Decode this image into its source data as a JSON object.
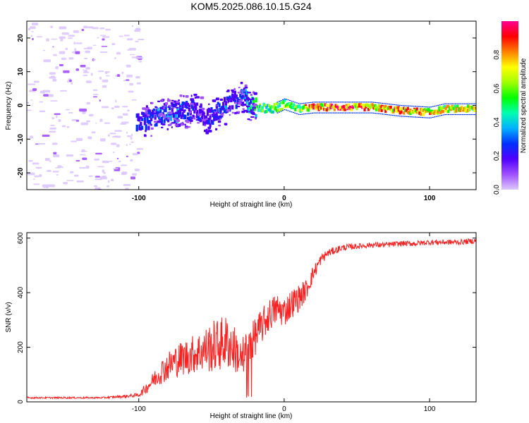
{
  "figure": {
    "title": "KOM5.2025.086.10.15.G24"
  },
  "chart_data": [
    {
      "type": "heatmap",
      "title": "KOM5.2025.086.10.15.G24",
      "xlabel": "Height of straight line (km)",
      "ylabel": "Frequency (Hz)",
      "xlim": [
        -177,
        132
      ],
      "ylim": [
        -25,
        25
      ],
      "xticks": [
        -100,
        0,
        100
      ],
      "yticks": [
        -20,
        -10,
        0,
        10,
        20
      ],
      "colorbar": {
        "label": "Normalized spectral amplitude",
        "range": [
          0,
          1
        ],
        "ticks": [
          "0.0",
          "0.2",
          "0.4",
          "0.6",
          "0.8"
        ],
        "colors": [
          "#dcc8ff",
          "#a050ff",
          "#5000ff",
          "#0030ff",
          "#00b0ff",
          "#00ffb0",
          "#00ff00",
          "#a0ff00",
          "#ffff00",
          "#ff8000",
          "#ff0000",
          "#ff0090"
        ]
      },
      "frequency_track": {
        "x": [
          -100,
          -90,
          -80,
          -70,
          -60,
          -55,
          -50,
          -45,
          -40,
          -35,
          -30,
          -28,
          -25,
          -20,
          -15,
          -10,
          -5,
          0,
          10,
          20,
          40,
          60,
          80,
          100,
          110,
          132
        ],
        "y": [
          -5,
          -3.5,
          -2,
          -1.5,
          -1,
          -4,
          -3,
          -1,
          0,
          2,
          3,
          2.5,
          0.5,
          -0.5,
          -0.5,
          -1,
          -0.5,
          0.5,
          -1,
          -0.5,
          -0.5,
          -0.5,
          -1.5,
          -2,
          -1,
          -1
        ],
        "amplitude": [
          0.25,
          0.3,
          0.35,
          0.3,
          0.25,
          0.2,
          0.25,
          0.3,
          0.3,
          0.25,
          0.3,
          0.35,
          0.5,
          0.55,
          0.6,
          0.55,
          0.6,
          0.65,
          0.7,
          0.95,
          0.95,
          0.9,
          0.9,
          0.85,
          0.8,
          0.75
        ]
      }
    },
    {
      "type": "line",
      "xlabel": "Height of straight line (km)",
      "ylabel": "SNR (v/v)",
      "xlim": [
        -177,
        132
      ],
      "ylim": [
        0,
        620
      ],
      "xticks": [
        -100,
        0,
        100
      ],
      "yticks": [
        0,
        200,
        400,
        600
      ],
      "color": "#ff2020",
      "series": [
        {
          "name": "SNR",
          "x": [
            -177,
            -150,
            -125,
            -110,
            -100,
            -95,
            -90,
            -85,
            -80,
            -75,
            -70,
            -65,
            -60,
            -55,
            -50,
            -45,
            -40,
            -35,
            -30,
            -25,
            -20,
            -15,
            -10,
            -5,
            0,
            5,
            10,
            15,
            20,
            25,
            30,
            40,
            50,
            60,
            70,
            80,
            90,
            100,
            110,
            120,
            132
          ],
          "values": [
            15,
            15,
            15,
            20,
            25,
            50,
            80,
            110,
            130,
            150,
            160,
            170,
            180,
            190,
            200,
            210,
            220,
            200,
            160,
            190,
            240,
            280,
            320,
            340,
            330,
            360,
            380,
            410,
            470,
            520,
            545,
            565,
            570,
            575,
            575,
            580,
            580,
            585,
            585,
            585,
            590
          ],
          "spread": [
            3,
            3,
            3,
            5,
            8,
            20,
            30,
            45,
            55,
            60,
            65,
            70,
            75,
            80,
            95,
            100,
            100,
            90,
            70,
            70,
            70,
            65,
            60,
            60,
            55,
            55,
            50,
            40,
            30,
            20,
            15,
            12,
            10,
            10,
            10,
            10,
            10,
            10,
            10,
            10,
            10
          ]
        }
      ]
    }
  ]
}
